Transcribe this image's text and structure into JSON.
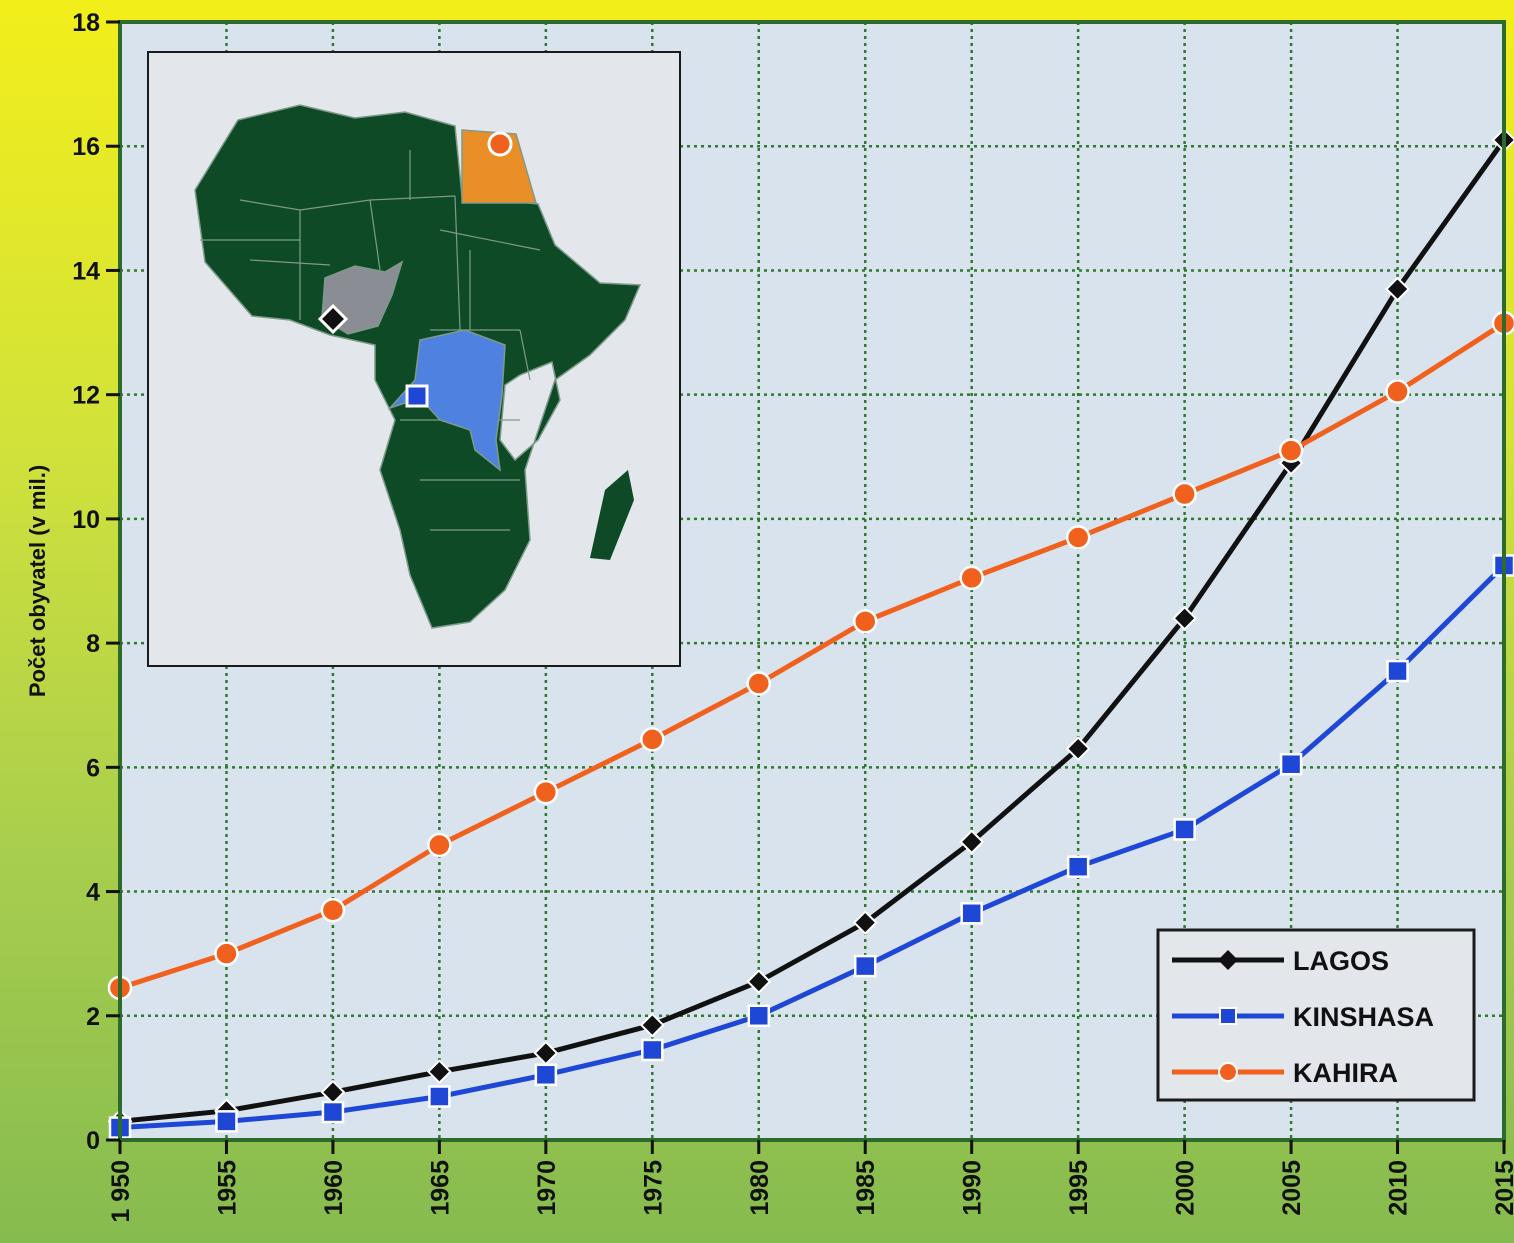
{
  "chart_data": {
    "type": "line",
    "title": "",
    "xlabel": "",
    "ylabel": "Počet obyvatel (v mil.)",
    "x": [
      1950,
      1955,
      1960,
      1965,
      1970,
      1975,
      1980,
      1985,
      1990,
      1995,
      2000,
      2005,
      2010,
      2015
    ],
    "x_tick_labels": [
      "1 950",
      "1955",
      "1960",
      "1965",
      "1970",
      "1975",
      "1980",
      "1985",
      "1990",
      "1995",
      "2000",
      "2005",
      "2010",
      "2015"
    ],
    "ylim": [
      0,
      18
    ],
    "y_ticks": [
      0,
      2,
      4,
      6,
      8,
      10,
      12,
      14,
      16,
      18
    ],
    "grid": true,
    "legend_position": "bottom-right",
    "series": [
      {
        "name": "LAGOS",
        "marker": "diamond",
        "color": "#111111",
        "values": [
          0.3,
          0.47,
          0.77,
          1.1,
          1.4,
          1.85,
          2.55,
          3.5,
          4.8,
          6.3,
          8.4,
          10.9,
          13.7,
          16.1
        ]
      },
      {
        "name": "KINSHASA",
        "marker": "square",
        "color": "#1f47d6",
        "values": [
          0.2,
          0.3,
          0.45,
          0.7,
          1.05,
          1.45,
          2.0,
          2.8,
          3.65,
          4.4,
          5.0,
          6.05,
          7.55,
          9.25
        ]
      },
      {
        "name": "KAHIRA",
        "marker": "circle",
        "color": "#f0611e",
        "values": [
          2.45,
          3.0,
          3.7,
          4.75,
          5.6,
          6.45,
          7.35,
          8.35,
          9.05,
          9.7,
          10.4,
          11.1,
          12.05,
          13.15
        ]
      }
    ]
  },
  "inset_map": {
    "highlighted_countries": [
      {
        "name": "Egypt",
        "color": "#ea8f28"
      },
      {
        "name": "Nigeria",
        "color": "#8b8d94"
      },
      {
        "name": "DR Congo",
        "color": "#4f82e0"
      }
    ],
    "base_color": "#0f4a26",
    "icons": [
      "africa-map",
      "lagos-marker",
      "kinshasa-marker",
      "cairo-marker"
    ]
  }
}
